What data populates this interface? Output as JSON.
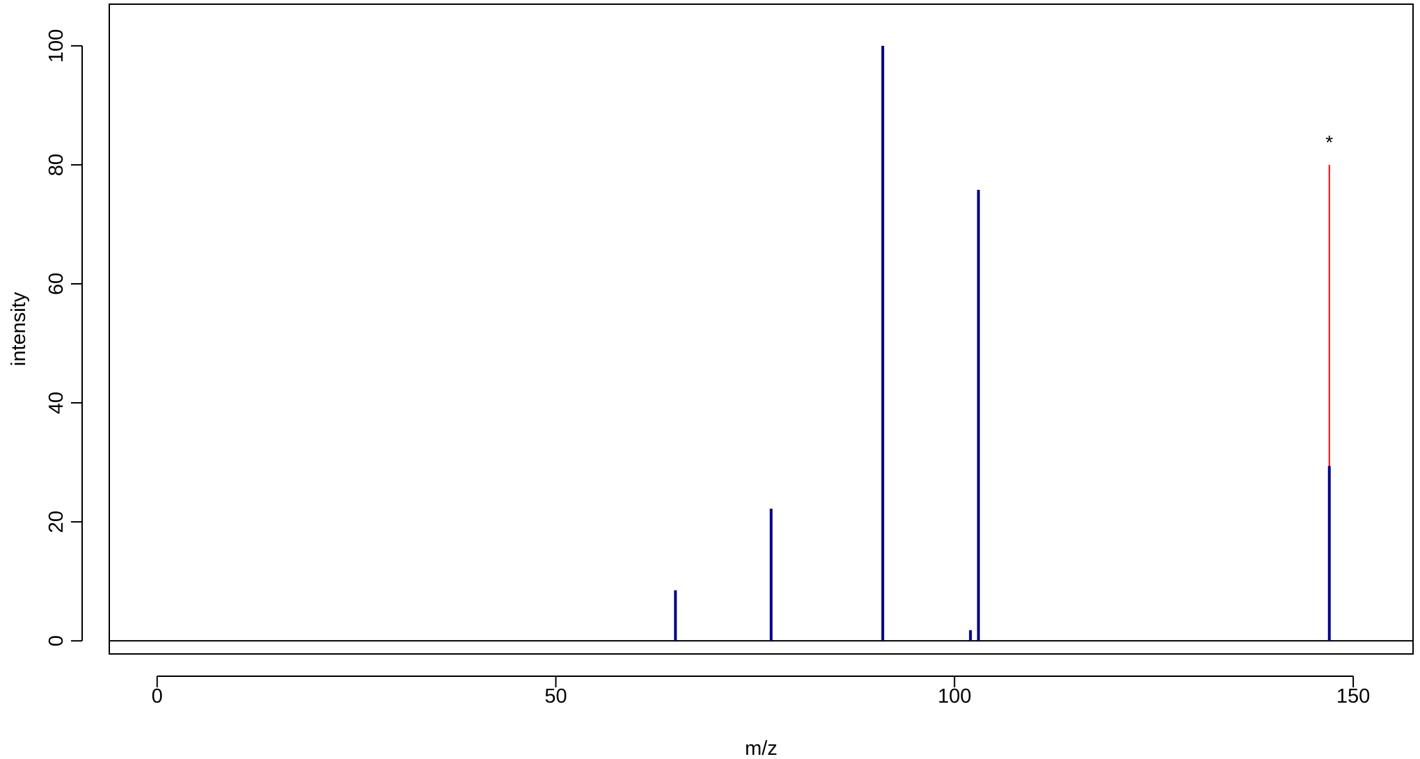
{
  "chart_data": {
    "type": "bar",
    "title": "",
    "xlabel": "m/z",
    "ylabel": "intensity",
    "xlim": [
      -6,
      157.5
    ],
    "ylim": [
      -2.2,
      107
    ],
    "xticks": [
      0,
      50,
      100,
      150
    ],
    "yticks": [
      0,
      20,
      40,
      60,
      80,
      100
    ],
    "grid": false,
    "legend": "none",
    "series": [
      {
        "color": "#00008B",
        "x": [
          65,
          77,
          91,
          102,
          103,
          147
        ],
        "values": [
          8.5,
          22.2,
          100,
          1.8,
          75.8,
          29.4
        ]
      },
      {
        "color": "#FF0000",
        "x": [
          147
        ],
        "values": [
          80
        ]
      }
    ],
    "annotations": [
      {
        "text": "*",
        "x": 147,
        "y": 85,
        "color": "#FF0000"
      }
    ]
  }
}
